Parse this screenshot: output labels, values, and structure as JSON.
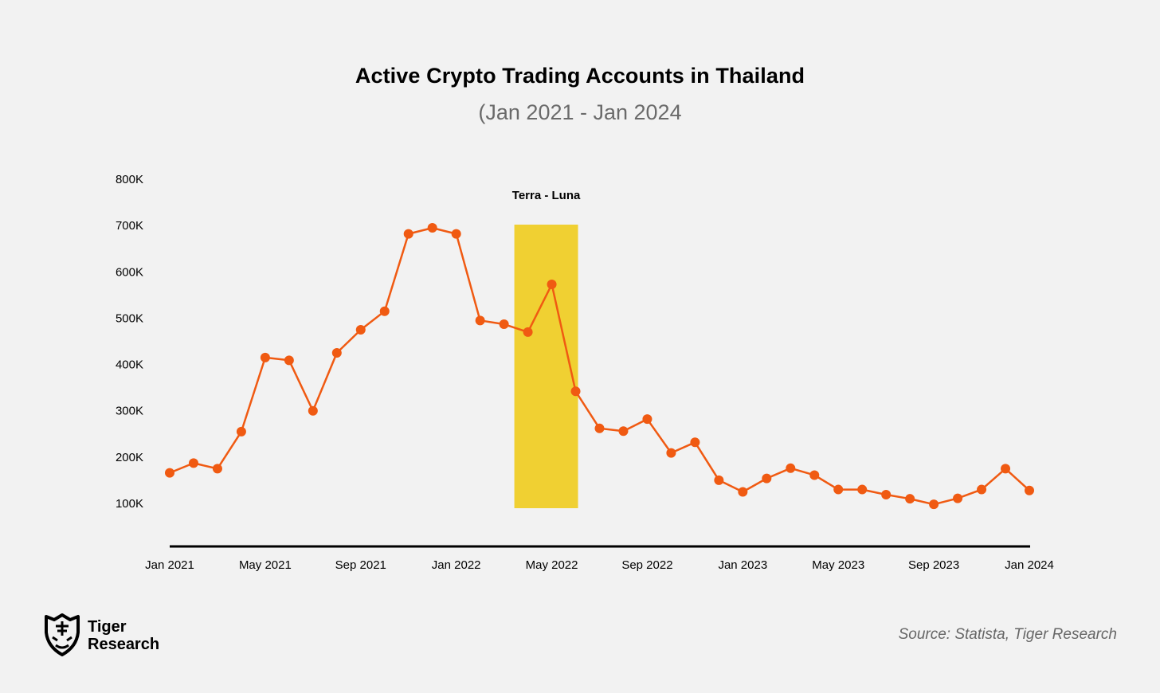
{
  "header": {
    "title": "Active Crypto Trading Accounts in Thailand",
    "subtitle": "(Jan 2021 - Jan 2024"
  },
  "footer": {
    "logo_line1": "Tiger",
    "logo_line2": "Research",
    "source": "Source: Statista, Tiger Research"
  },
  "colors": {
    "line": "#f05a12",
    "highlight": "#f0d032",
    "axis": "#000000",
    "background": "#f2f2f2"
  },
  "chart_data": {
    "type": "line",
    "title": "Active Crypto Trading Accounts in Thailand",
    "subtitle": "(Jan 2021 - Jan 2024",
    "xlabel": "",
    "ylabel": "",
    "ylim": [
      100000,
      800000
    ],
    "y_ticks": [
      100000,
      200000,
      300000,
      400000,
      500000,
      600000,
      700000,
      800000
    ],
    "y_tick_labels": [
      "100K",
      "200K",
      "300K",
      "400K",
      "500K",
      "600K",
      "700K",
      "800K"
    ],
    "x_tick_labels": [
      "Jan 2021",
      "May 2021",
      "Sep 2021",
      "Jan 2022",
      "May 2022",
      "Sep 2022",
      "Jan 2023",
      "May 2023",
      "Sep 2023",
      "Jan 2024"
    ],
    "x_tick_months": [
      "2021-01",
      "2021-05",
      "2021-09",
      "2022-01",
      "2022-05",
      "2022-09",
      "2023-01",
      "2023-05",
      "2023-09",
      "2024-01"
    ],
    "grid": false,
    "annotations": [
      {
        "label": "Terra - Luna",
        "x_start": "2022-04",
        "x_end": "2022-06"
      }
    ],
    "series": [
      {
        "x": [
          "2021-01",
          "2021-02",
          "2021-03",
          "2021-04",
          "2021-05",
          "2021-06",
          "2021-07",
          "2021-08",
          "2021-09",
          "2021-10",
          "2021-11",
          "2021-12",
          "2022-01",
          "2022-02",
          "2022-03",
          "2022-04",
          "2022-05",
          "2022-06",
          "2022-07",
          "2022-08",
          "2022-09",
          "2022-10",
          "2022-11",
          "2022-12",
          "2023-01",
          "2023-02",
          "2023-03",
          "2023-04",
          "2023-05",
          "2023-06",
          "2023-07",
          "2023-08",
          "2023-09",
          "2023-10",
          "2023-11",
          "2023-12",
          "2024-01"
        ],
        "values": [
          166000,
          187000,
          175000,
          255000,
          415000,
          409000,
          300000,
          425000,
          475000,
          515000,
          682000,
          695000,
          682000,
          495000,
          487000,
          470000,
          573000,
          342000,
          262000,
          256000,
          282000,
          209000,
          232000,
          150000,
          125000,
          154000,
          176000,
          161000,
          130000,
          130000,
          119000,
          110000,
          98000,
          111000,
          130000,
          175000,
          128000
        ]
      }
    ]
  }
}
